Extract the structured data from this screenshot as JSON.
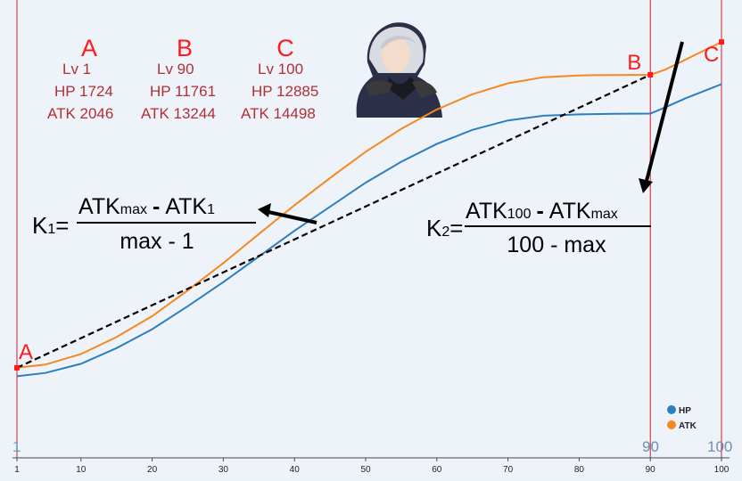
{
  "chart_data": {
    "type": "line",
    "x": [
      1,
      5,
      10,
      15,
      20,
      25,
      30,
      35,
      40,
      45,
      50,
      55,
      60,
      65,
      70,
      75,
      80,
      82,
      85,
      88,
      90,
      92,
      95,
      98,
      100
    ],
    "xlim": [
      1,
      100
    ],
    "x_ticks": [
      1,
      10,
      20,
      30,
      40,
      50,
      60,
      70,
      80,
      90,
      100
    ],
    "ylim": [
      0,
      16000
    ],
    "series": [
      {
        "name": "HP",
        "color": "#2c7fbf",
        "values": [
          1724,
          1850,
          2200,
          2800,
          3520,
          4400,
          5320,
          6300,
          7280,
          8200,
          9120,
          9920,
          10600,
          11140,
          11500,
          11680,
          11730,
          11740,
          11750,
          11758,
          11761,
          11990,
          12350,
          12670,
          12885
        ]
      },
      {
        "name": "ATK",
        "color": "#f5891f",
        "values": [
          2046,
          2170,
          2570,
          3220,
          4020,
          5000,
          6050,
          7160,
          8260,
          9300,
          10300,
          11180,
          11920,
          12500,
          12920,
          13150,
          13220,
          13228,
          13236,
          13240,
          13244,
          13430,
          13830,
          14230,
          14498
        ]
      }
    ],
    "legend_position": "bottom-right",
    "grid": false,
    "markers": [
      {
        "label": "A",
        "x": 1,
        "y": 2046
      },
      {
        "label": "B",
        "x": 90,
        "y": 13244
      },
      {
        "label": "C",
        "x": 100,
        "y": 14498
      }
    ],
    "vertical_lines": [
      1,
      90,
      100
    ],
    "level_labels": [
      "1",
      "90",
      "100"
    ]
  },
  "stats": [
    {
      "header": "A",
      "lv": "Lv 1",
      "hp": "HP 1724",
      "atk": "ATK 2046"
    },
    {
      "header": "B",
      "lv": "Lv 90",
      "hp": "HP 11761",
      "atk": "ATK 13244"
    },
    {
      "header": "C",
      "lv": "Lv 100",
      "hp": "HP 12885",
      "atk": "ATK 14498"
    }
  ],
  "formulas": {
    "k1": {
      "lhs": "K",
      "sub": "1",
      "eq": "=",
      "num_a": "ATK",
      "num_a_sub": "max",
      "minus": "-",
      "num_b": "ATK",
      "num_b_sub": "1",
      "den": "max - 1"
    },
    "k2": {
      "lhs": "K",
      "sub": "2",
      "eq": "=",
      "num_a": "ATK",
      "num_a_sub": "100",
      "minus": "-",
      "num_b": "ATK",
      "num_b_sub": "max",
      "den": "100 - max"
    }
  },
  "colors": {
    "red": "#ff1a1a",
    "stat_text": "#b03036",
    "background": "#eef2f9",
    "vline": "#c8202a"
  }
}
